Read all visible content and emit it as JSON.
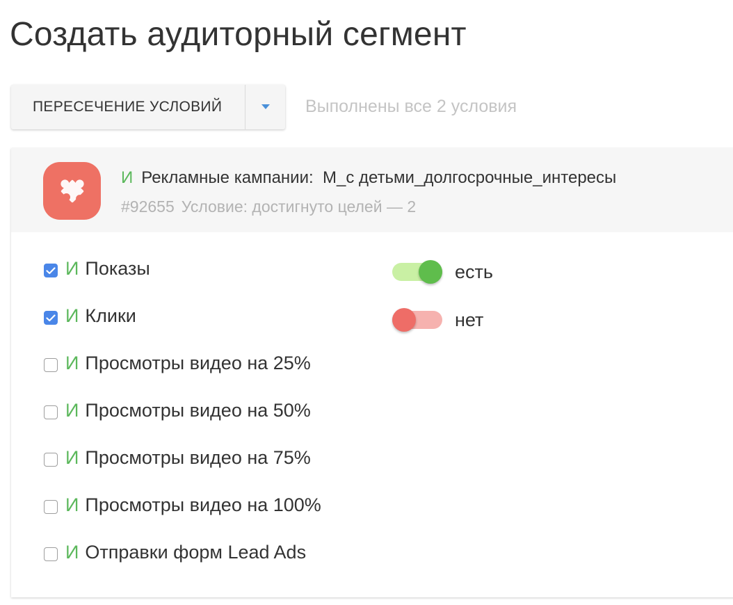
{
  "page": {
    "title": "Создать аудиторный сегмент"
  },
  "mode_select": {
    "selected": "ПЕРЕСЕЧЕНИЕ УСЛОВИЙ",
    "hint": "Выполнены все 2 условия"
  },
  "condition": {
    "connector": "И",
    "source": "Рекламные кампании:",
    "name": "М_с детьми_долгосрочные_интересы",
    "id": "#92655",
    "summary": "Условие: достигнуто целей — 2",
    "icon": "puzzle-icon",
    "icon_color": "#ee7164"
  },
  "goals": [
    {
      "connector": "И",
      "label": "Показы",
      "checked": true
    },
    {
      "connector": "И",
      "label": "Клики",
      "checked": true
    },
    {
      "connector": "И",
      "label": "Просмотры видео на 25%",
      "checked": false
    },
    {
      "connector": "И",
      "label": "Просмотры видео на 50%",
      "checked": false
    },
    {
      "connector": "И",
      "label": "Просмотры видео на 75%",
      "checked": false
    },
    {
      "connector": "И",
      "label": "Просмотры видео на 100%",
      "checked": false
    },
    {
      "connector": "И",
      "label": "Отправки форм Lead Ads",
      "checked": false
    }
  ],
  "toggles": [
    {
      "label": "есть",
      "on": true,
      "color": "#5fbd4c"
    },
    {
      "label": "нет",
      "on": false,
      "color": "#ee6d67"
    }
  ],
  "colors": {
    "accent_green": "#5cb85c",
    "checkbox_blue": "#4a86e8",
    "hint_gray": "#c4c4c4",
    "dropdown_arrow": "#4a90d9"
  }
}
